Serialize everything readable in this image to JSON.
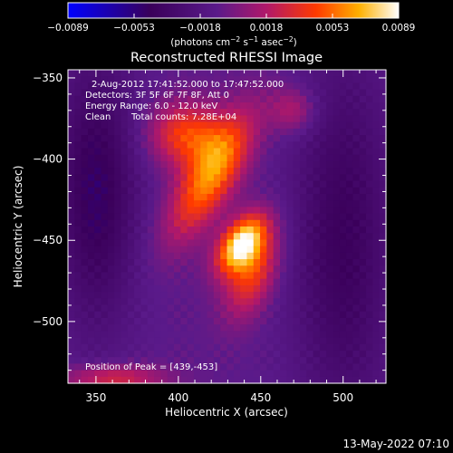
{
  "chart_data": {
    "type": "heatmap",
    "title": "Reconstructed RHESSI Image",
    "xlabel": "Heliocentric X (arcsec)",
    "ylabel": "Heliocentric Y (arcsec)",
    "xlim": [
      333,
      526
    ],
    "ylim": [
      -538,
      -345
    ],
    "x_ticks": [
      350,
      400,
      450,
      500
    ],
    "y_ticks": [
      -350,
      -400,
      -450,
      -500
    ],
    "colorbar": {
      "min": -0.0089,
      "max": 0.0089,
      "ticks": [
        "-0.0089",
        "-0.0053",
        "-0.0018",
        "0.0018",
        "0.0053",
        "0.0089"
      ],
      "unit_label_parts": [
        "(photons cm",
        "-2",
        " s",
        "-1",
        " asec",
        "-2",
        ")"
      ]
    },
    "annotations": {
      "time_range": "2-Aug-2012 17:41:52.000 to 17:47:52.000",
      "detectors": "Detectors: 3F 5F 6F 7F 8F, Att 0",
      "energy": "Energy Range: 6.0 - 12.0 keV",
      "clean_label": "Clean",
      "total_counts": "Total counts: 7.28E+04",
      "peak": "Position of Peak = [439,-453]"
    },
    "peak": [
      439,
      -453
    ],
    "sources": [
      {
        "x": 438,
        "y": -452,
        "amp": 0.0089,
        "sx": 8,
        "sy": 14,
        "angle": -35
      },
      {
        "x": 420,
        "y": -410,
        "amp": 0.0068,
        "sx": 11,
        "sy": 30,
        "angle": -30
      },
      {
        "x": 405,
        "y": -385,
        "amp": 0.0052,
        "sx": 16,
        "sy": 14,
        "angle": 0
      },
      {
        "x": 445,
        "y": -470,
        "amp": 0.005,
        "sx": 10,
        "sy": 20,
        "angle": -20
      },
      {
        "x": 470,
        "y": -370,
        "amp": 0.003,
        "sx": 10,
        "sy": 10,
        "angle": 0
      },
      {
        "x": 360,
        "y": -535,
        "amp": 0.004,
        "sx": 22,
        "sy": 6,
        "angle": 0
      },
      {
        "x": 350,
        "y": -420,
        "amp": -0.004,
        "sx": 18,
        "sy": 60,
        "angle": 0
      },
      {
        "x": 500,
        "y": -450,
        "amp": -0.0035,
        "sx": 22,
        "sy": 80,
        "angle": 0
      }
    ],
    "background": -0.0008
  },
  "footer": {
    "date": "13-May-2022 07:10"
  }
}
